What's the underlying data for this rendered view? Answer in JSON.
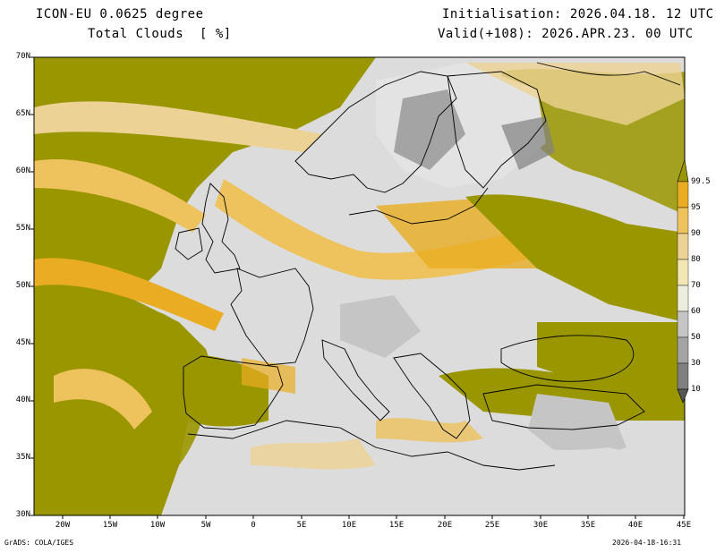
{
  "header": {
    "model": "ICON-EU 0.0625 degree",
    "variable": "Total Clouds  [ %]",
    "init": "Initialisation: 2026.04.18. 12 UTC",
    "valid": "Valid(+108): 2026.APR.23. 00 UTC"
  },
  "map": {
    "lat_labels": [
      "70N",
      "65N",
      "60N",
      "55N",
      "50N",
      "45N",
      "40N",
      "35N",
      "30N"
    ],
    "lon_labels": [
      "20W",
      "15W",
      "10W",
      "5W",
      "0",
      "5E",
      "10E",
      "15E",
      "20E",
      "25E",
      "30E",
      "35E",
      "40E",
      "45E"
    ],
    "lat_range": [
      30,
      70
    ],
    "lon_range": [
      -23,
      45
    ]
  },
  "legend": {
    "levels": [
      "99.5",
      "95",
      "90",
      "80",
      "70",
      "60",
      "50",
      "30",
      "10"
    ],
    "colors": [
      "#9a9600",
      "#e9ac22",
      "#eec25c",
      "#ecd294",
      "#f1e6b4",
      "#ededdd",
      "#c5c5c5",
      "#a4a4a4",
      "#808080",
      "#565656"
    ]
  },
  "footer": {
    "left": "GrADS: COLA/IGES",
    "right": "2026-04-18-16:31"
  }
}
